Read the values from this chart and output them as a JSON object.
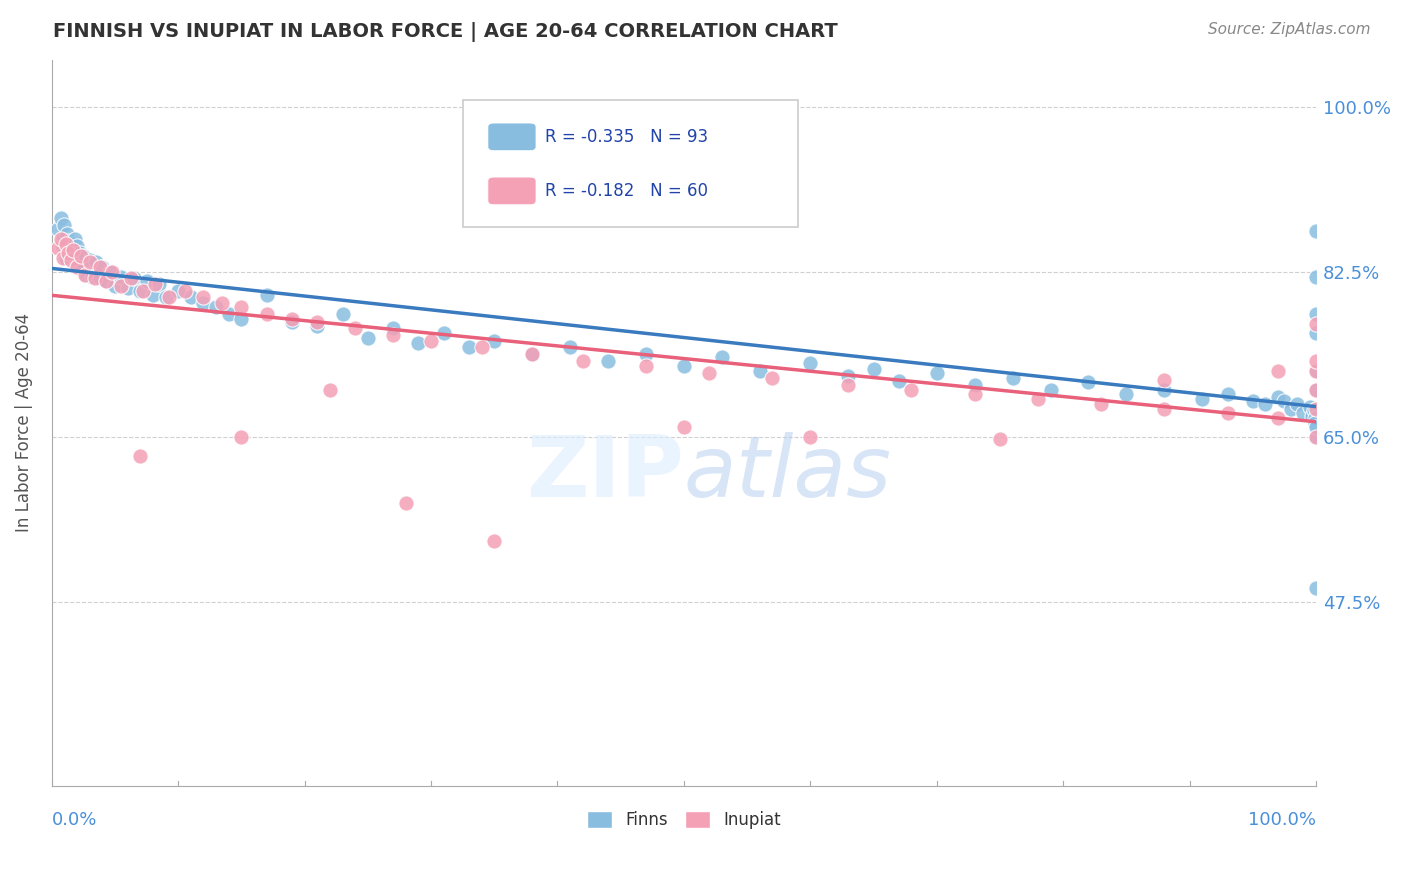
{
  "title": "FINNISH VS INUPIAT IN LABOR FORCE | AGE 20-64 CORRELATION CHART",
  "source": "Source: ZipAtlas.com",
  "ylabel": "In Labor Force | Age 20-64",
  "xlim": [
    0.0,
    1.0
  ],
  "ylim": [
    0.28,
    1.05
  ],
  "yticks": [
    0.475,
    0.65,
    0.825,
    1.0
  ],
  "ytick_labels": [
    "47.5%",
    "65.0%",
    "82.5%",
    "100.0%"
  ],
  "finns_color": "#89bde0",
  "inupiat_color": "#f4a0b5",
  "finns_line_color": "#3a7abf",
  "inupiat_line_color": "#e8607a",
  "grid_color": "#d0d0d0",
  "finns_R": -0.335,
  "finns_N": 93,
  "inupiat_R": -0.182,
  "inupiat_N": 60,
  "finns_x": [
    0.005,
    0.007,
    0.008,
    0.009,
    0.01,
    0.011,
    0.012,
    0.013,
    0.014,
    0.015,
    0.016,
    0.017,
    0.018,
    0.019,
    0.02,
    0.021,
    0.022,
    0.023,
    0.025,
    0.027,
    0.03,
    0.032,
    0.035,
    0.038,
    0.04,
    0.043,
    0.046,
    0.05,
    0.055,
    0.06,
    0.065,
    0.07,
    0.075,
    0.08,
    0.085,
    0.09,
    0.1,
    0.11,
    0.12,
    0.13,
    0.14,
    0.15,
    0.17,
    0.19,
    0.21,
    0.23,
    0.25,
    0.27,
    0.29,
    0.31,
    0.33,
    0.35,
    0.38,
    0.41,
    0.44,
    0.47,
    0.5,
    0.53,
    0.56,
    0.6,
    0.63,
    0.65,
    0.67,
    0.7,
    0.73,
    0.76,
    0.79,
    0.82,
    0.85,
    0.88,
    0.91,
    0.93,
    0.95,
    0.96,
    0.97,
    0.975,
    0.98,
    0.985,
    0.99,
    0.995,
    0.997,
    0.998,
    0.999,
    0.9995,
    1.0,
    1.0,
    1.0,
    1.0,
    1.0,
    1.0,
    1.0,
    1.0,
    1.0
  ],
  "finns_y": [
    0.87,
    0.882,
    0.853,
    0.86,
    0.875,
    0.84,
    0.865,
    0.85,
    0.858,
    0.848,
    0.855,
    0.845,
    0.86,
    0.838,
    0.852,
    0.832,
    0.845,
    0.828,
    0.842,
    0.822,
    0.838,
    0.82,
    0.835,
    0.818,
    0.83,
    0.815,
    0.825,
    0.81,
    0.82,
    0.808,
    0.818,
    0.805,
    0.815,
    0.8,
    0.812,
    0.798,
    0.805,
    0.798,
    0.792,
    0.788,
    0.78,
    0.775,
    0.8,
    0.772,
    0.768,
    0.78,
    0.755,
    0.765,
    0.75,
    0.76,
    0.745,
    0.752,
    0.738,
    0.745,
    0.73,
    0.738,
    0.725,
    0.735,
    0.72,
    0.728,
    0.715,
    0.722,
    0.709,
    0.718,
    0.705,
    0.712,
    0.7,
    0.708,
    0.695,
    0.7,
    0.69,
    0.695,
    0.688,
    0.685,
    0.692,
    0.688,
    0.68,
    0.685,
    0.675,
    0.682,
    0.672,
    0.678,
    0.67,
    0.665,
    0.868,
    0.82,
    0.76,
    0.7,
    0.65,
    0.78,
    0.72,
    0.49,
    0.66
  ],
  "inupiat_x": [
    0.005,
    0.007,
    0.009,
    0.011,
    0.013,
    0.015,
    0.017,
    0.02,
    0.023,
    0.026,
    0.03,
    0.034,
    0.038,
    0.043,
    0.048,
    0.055,
    0.063,
    0.072,
    0.082,
    0.093,
    0.105,
    0.12,
    0.135,
    0.15,
    0.17,
    0.19,
    0.21,
    0.24,
    0.27,
    0.3,
    0.34,
    0.38,
    0.42,
    0.47,
    0.52,
    0.57,
    0.63,
    0.68,
    0.73,
    0.78,
    0.83,
    0.88,
    0.93,
    0.97,
    1.0,
    1.0,
    1.0,
    1.0,
    1.0,
    1.0,
    0.07,
    0.15,
    0.22,
    0.28,
    0.35,
    0.5,
    0.6,
    0.75,
    0.88,
    0.97
  ],
  "inupiat_y": [
    0.85,
    0.86,
    0.84,
    0.855,
    0.845,
    0.838,
    0.848,
    0.83,
    0.842,
    0.822,
    0.835,
    0.818,
    0.83,
    0.815,
    0.825,
    0.81,
    0.818,
    0.805,
    0.812,
    0.798,
    0.805,
    0.798,
    0.792,
    0.788,
    0.78,
    0.775,
    0.772,
    0.765,
    0.758,
    0.752,
    0.745,
    0.738,
    0.73,
    0.725,
    0.718,
    0.712,
    0.705,
    0.7,
    0.695,
    0.69,
    0.685,
    0.68,
    0.675,
    0.67,
    0.77,
    0.72,
    0.68,
    0.65,
    0.7,
    0.73,
    0.63,
    0.65,
    0.7,
    0.58,
    0.54,
    0.66,
    0.65,
    0.648,
    0.71,
    0.72
  ]
}
